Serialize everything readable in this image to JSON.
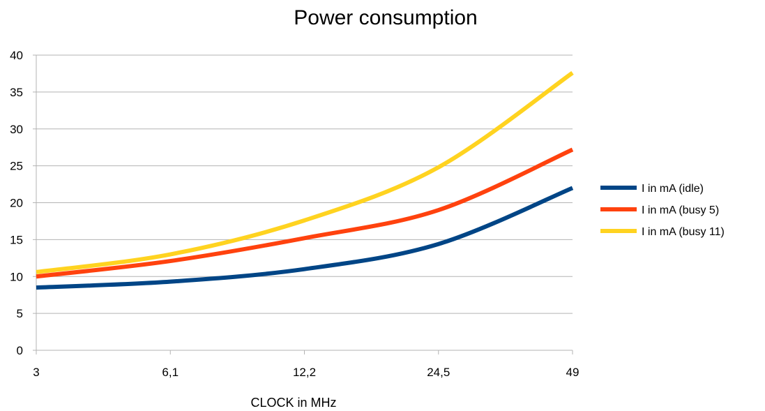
{
  "chart_data": {
    "type": "line",
    "title": "Power consumption",
    "xlabel": "CLOCK in MHz",
    "ylabel": "",
    "categories": [
      "3",
      "6,1",
      "12,2",
      "24,5",
      "49"
    ],
    "ylim": [
      0,
      40
    ],
    "yticks": [
      0,
      5,
      10,
      15,
      20,
      25,
      30,
      35,
      40
    ],
    "grid": true,
    "legend_position": "right",
    "smooth": true,
    "series": [
      {
        "name": "I in mA (idle)",
        "color": "#004586",
        "values": [
          8.5,
          9.3,
          11.0,
          14.4,
          22.0
        ]
      },
      {
        "name": "I in mA (busy 5)",
        "color": "#ff420e",
        "values": [
          10.0,
          12.1,
          15.2,
          19.0,
          27.2
        ]
      },
      {
        "name": "I in mA (busy 11)",
        "color": "#ffd320",
        "values": [
          10.6,
          13.0,
          17.6,
          24.8,
          37.6
        ]
      }
    ]
  }
}
